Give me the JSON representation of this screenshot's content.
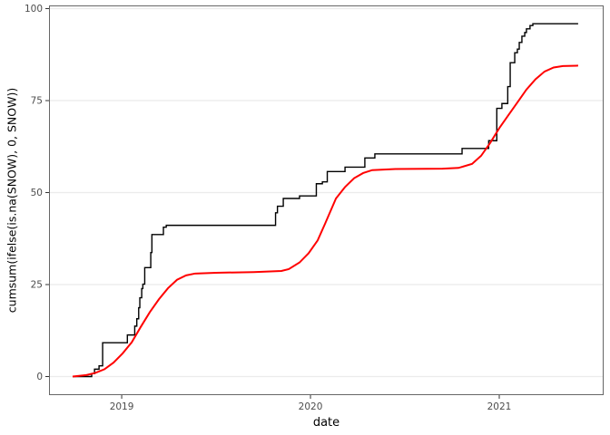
{
  "figure": {
    "background": "#ffffff"
  },
  "chart_data": {
    "type": "line",
    "title": "",
    "xlabel": "date",
    "ylabel": "cumsum(ifelse(is.na(SNOW), 0, SNOW))",
    "x_domain": [
      2018.615,
      2021.553
    ],
    "y_domain": [
      -5.05,
      100.86
    ],
    "x_ticks": [
      {
        "value": 2019,
        "label": "2019"
      },
      {
        "value": 2020,
        "label": "2020"
      },
      {
        "value": 2021,
        "label": "2021"
      }
    ],
    "y_ticks": [
      {
        "value": 0,
        "label": "0"
      },
      {
        "value": 25,
        "label": "25"
      },
      {
        "value": 50,
        "label": "50"
      },
      {
        "value": 75,
        "label": "75"
      },
      {
        "value": 100,
        "label": "100"
      }
    ],
    "grid": {
      "horizontal_major": true,
      "vertical": false,
      "color": "#ebebeb"
    },
    "panel": {
      "background": "#ffffff",
      "border_color": "#666666"
    },
    "axis": {
      "tick_color": "#333333",
      "tick_label_color": "#4d4d4d",
      "title_color": "#000000"
    },
    "legend": "none",
    "series": [
      {
        "name": "cumulative-snow-step",
        "render": "step-hv",
        "color": "#000000",
        "stroke_width": 1.4,
        "points": [
          [
            2018.74,
            0
          ],
          [
            2018.841,
            0.8
          ],
          [
            2018.856,
            2.0
          ],
          [
            2018.88,
            2.9
          ],
          [
            2018.899,
            9.2
          ],
          [
            2019.03,
            11.3
          ],
          [
            2019.069,
            13.7
          ],
          [
            2019.08,
            15.7
          ],
          [
            2019.09,
            18.7
          ],
          [
            2019.096,
            21.4
          ],
          [
            2019.106,
            23.9
          ],
          [
            2019.112,
            25.1
          ],
          [
            2019.122,
            29.6
          ],
          [
            2019.154,
            33.7
          ],
          [
            2019.16,
            38.6
          ],
          [
            2019.221,
            40.6
          ],
          [
            2019.236,
            41.1
          ],
          [
            2019.815,
            44.5
          ],
          [
            2019.825,
            46.3
          ],
          [
            2019.856,
            48.4
          ],
          [
            2019.942,
            49.1
          ],
          [
            2020.031,
            52.4
          ],
          [
            2020.063,
            52.9
          ],
          [
            2020.089,
            55.7
          ],
          [
            2020.183,
            56.9
          ],
          [
            2020.288,
            59.4
          ],
          [
            2020.341,
            60.5
          ],
          [
            2020.803,
            62.0
          ],
          [
            2020.944,
            64.1
          ],
          [
            2020.987,
            72.9
          ],
          [
            2021.014,
            74.2
          ],
          [
            2021.045,
            78.8
          ],
          [
            2021.058,
            85.3
          ],
          [
            2021.082,
            88.0
          ],
          [
            2021.096,
            89.0
          ],
          [
            2021.106,
            90.8
          ],
          [
            2021.12,
            92.5
          ],
          [
            2021.135,
            93.5
          ],
          [
            2021.144,
            94.5
          ],
          [
            2021.163,
            95.4
          ],
          [
            2021.178,
            95.9
          ],
          [
            2021.418,
            95.9
          ]
        ]
      },
      {
        "name": "smoothed-cumulative-snow",
        "render": "line",
        "color": "#ff0000",
        "stroke_width": 2,
        "points": [
          [
            2018.74,
            0
          ],
          [
            2018.813,
            0.4
          ],
          [
            2018.861,
            1.0
          ],
          [
            2018.909,
            2.0
          ],
          [
            2018.957,
            3.8
          ],
          [
            2019.005,
            6.3
          ],
          [
            2019.053,
            9.3
          ],
          [
            2019.101,
            13.5
          ],
          [
            2019.149,
            17.5
          ],
          [
            2019.197,
            21.0
          ],
          [
            2019.245,
            24.0
          ],
          [
            2019.293,
            26.3
          ],
          [
            2019.341,
            27.5
          ],
          [
            2019.389,
            28.0
          ],
          [
            2019.5,
            28.2
          ],
          [
            2019.7,
            28.4
          ],
          [
            2019.846,
            28.7
          ],
          [
            2019.885,
            29.2
          ],
          [
            2019.942,
            31.0
          ],
          [
            2019.99,
            33.5
          ],
          [
            2020.038,
            37.0
          ],
          [
            2020.077,
            41.5
          ],
          [
            2020.135,
            48.4
          ],
          [
            2020.183,
            51.5
          ],
          [
            2020.231,
            53.9
          ],
          [
            2020.279,
            55.3
          ],
          [
            2020.327,
            56.1
          ],
          [
            2020.45,
            56.4
          ],
          [
            2020.7,
            56.5
          ],
          [
            2020.784,
            56.7
          ],
          [
            2020.856,
            57.8
          ],
          [
            2020.904,
            60.0
          ],
          [
            2020.952,
            63.5
          ],
          [
            2021.0,
            67.5
          ],
          [
            2021.048,
            71.0
          ],
          [
            2021.096,
            74.5
          ],
          [
            2021.144,
            78.0
          ],
          [
            2021.192,
            80.8
          ],
          [
            2021.24,
            82.9
          ],
          [
            2021.288,
            84.0
          ],
          [
            2021.337,
            84.4
          ],
          [
            2021.418,
            84.5
          ]
        ]
      }
    ]
  }
}
